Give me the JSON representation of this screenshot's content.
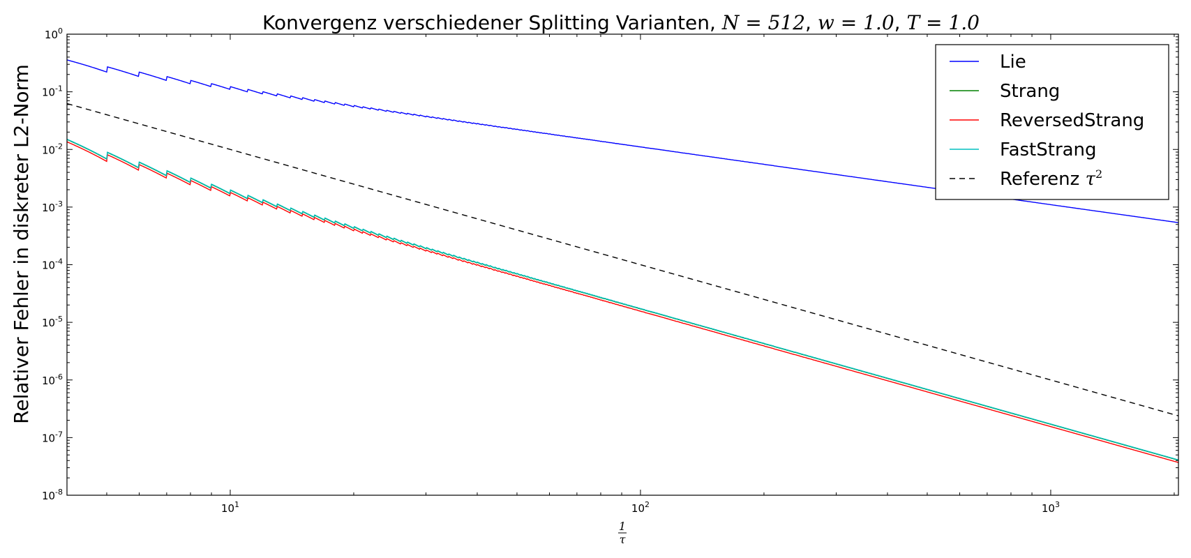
{
  "chart_data": {
    "type": "line",
    "title": {
      "text": "Konvergenz verschiedener Splitting Varianten, ",
      "N_label": "N",
      "N_value": "512",
      "w_label": "w",
      "w_value": "1.0",
      "T_label": "T",
      "T_value": "1.0"
    },
    "xlabel": {
      "numerator": "1",
      "denominator": "τ"
    },
    "ylabel": "Relativer Fehler in diskreter L2-Norm",
    "xscale": "log",
    "yscale": "log",
    "xlim": [
      4,
      2048
    ],
    "ylim": [
      1e-08,
      1
    ],
    "xticks": [
      {
        "value": 10,
        "base": "10",
        "exp": "1"
      },
      {
        "value": 100,
        "base": "10",
        "exp": "2"
      },
      {
        "value": 1000,
        "base": "10",
        "exp": "3"
      }
    ],
    "yticks": [
      {
        "value": 1,
        "base": "10",
        "exp": "0"
      },
      {
        "value": 0.1,
        "base": "10",
        "exp": "-1"
      },
      {
        "value": 0.01,
        "base": "10",
        "exp": "-2"
      },
      {
        "value": 0.001,
        "base": "10",
        "exp": "-3"
      },
      {
        "value": 0.0001,
        "base": "10",
        "exp": "-4"
      },
      {
        "value": 1e-05,
        "base": "10",
        "exp": "-5"
      },
      {
        "value": 1e-06,
        "base": "10",
        "exp": "-6"
      },
      {
        "value": 1e-07,
        "base": "10",
        "exp": "-7"
      },
      {
        "value": 1e-08,
        "base": "10",
        "exp": "-8"
      }
    ],
    "grid": false,
    "legend_position": "top-right",
    "series": [
      {
        "name": "Lie",
        "color": "#0000ff",
        "dash": "solid",
        "model": {
          "type": "sawtooth",
          "base_coef": 1.1,
          "power": -1.0,
          "jump": 1.6
        }
      },
      {
        "name": "Strang",
        "color": "#008000",
        "dash": "solid",
        "model": {
          "type": "sawtooth",
          "base_coef": 0.17,
          "power": -2.0,
          "jump": 1.8
        }
      },
      {
        "name": "ReversedStrang",
        "color": "#ff0000",
        "dash": "solid",
        "model": {
          "type": "sawtooth",
          "base_coef": 0.155,
          "power": -2.0,
          "jump": 1.8
        }
      },
      {
        "name": "FastStrang",
        "color": "#00bfbf",
        "dash": "solid",
        "model": {
          "type": "sawtooth",
          "base_coef": 0.172,
          "power": -2.0,
          "jump": 1.8
        }
      },
      {
        "name": "Referenz ",
        "name_math": "τ",
        "name_exp": "2",
        "color": "#000000",
        "dash": "dashed",
        "model": {
          "type": "power",
          "coef": 1.0,
          "power": -2.0
        }
      }
    ]
  }
}
